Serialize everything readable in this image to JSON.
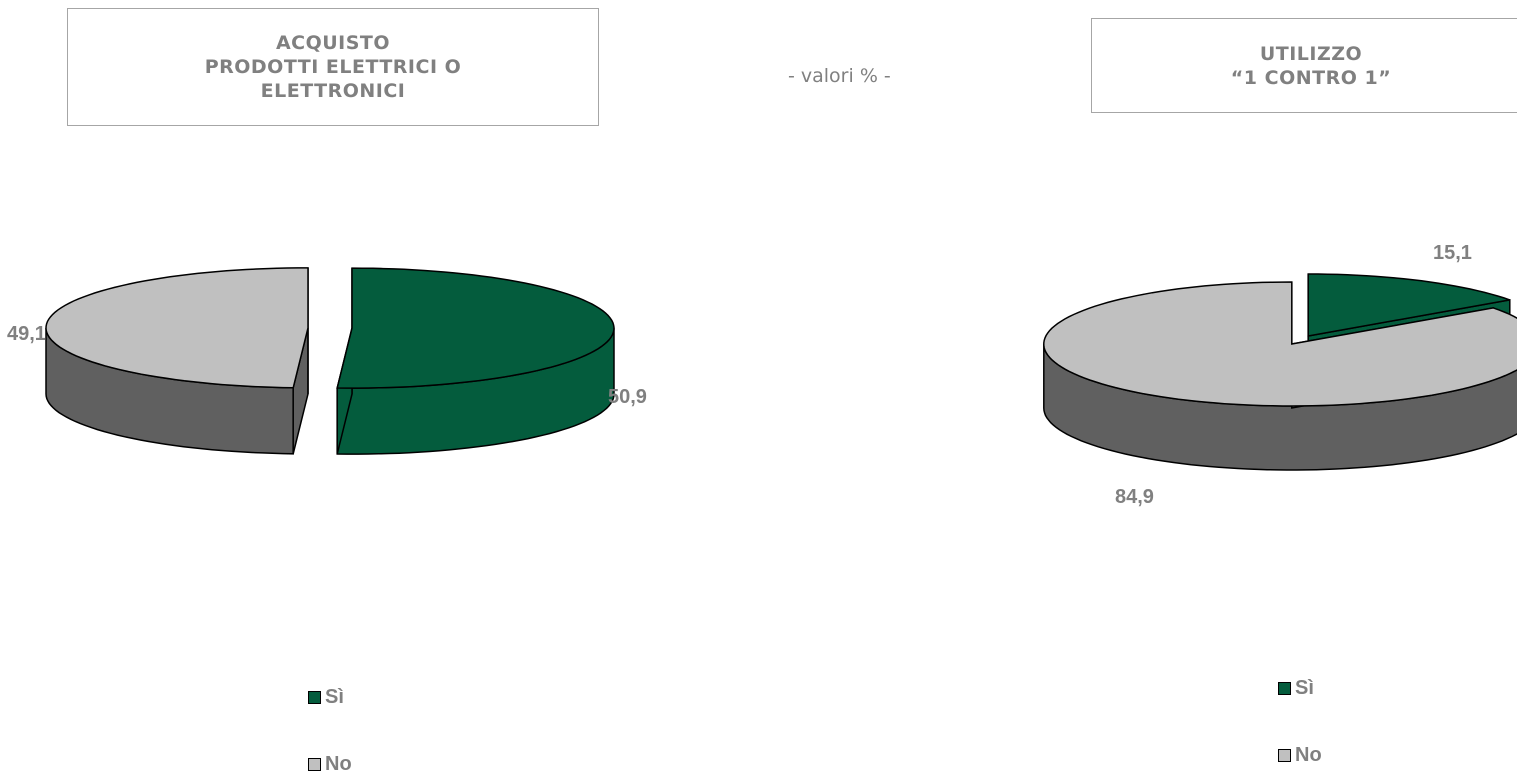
{
  "subtitle": "- valori % -",
  "colors": {
    "si": "#045c3d",
    "no": "#c0c0c0",
    "no_side": "#606060",
    "outline": "#000000"
  },
  "chart_data": [
    {
      "type": "pie",
      "title_lines": [
        "ACQUISTO",
        "PRODOTTI ELETTRICI O",
        "ELETTRONICI"
      ],
      "categories": [
        "Sì",
        "No"
      ],
      "values": [
        50.9,
        49.1
      ],
      "data_labels": [
        "50,9",
        "49,1"
      ],
      "legend": [
        "Sì",
        "No"
      ],
      "legend_placement": "bottom",
      "style": "3d-exploded"
    },
    {
      "type": "pie",
      "title_lines": [
        "UTILIZZO",
        "“1 CONTRO 1”"
      ],
      "categories": [
        "Sì",
        "No"
      ],
      "values": [
        15.1,
        84.9
      ],
      "data_labels": [
        "15,1",
        "84,9"
      ],
      "legend": [
        "Sì",
        "No"
      ],
      "legend_placement": "bottom",
      "style": "3d-exploded"
    }
  ]
}
